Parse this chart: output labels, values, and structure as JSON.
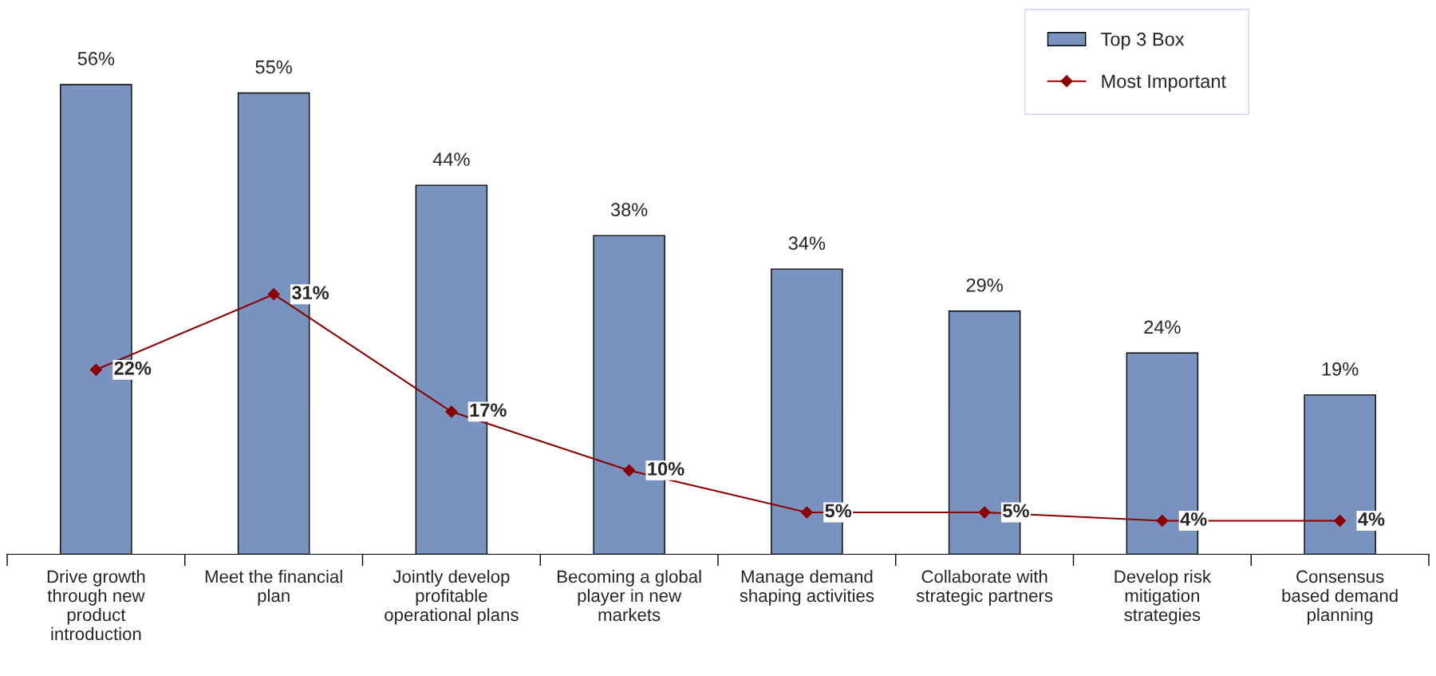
{
  "chart_data": {
    "type": "bar",
    "categories": [
      "Drive growth\nthrough new\nproduct\nintroduction",
      "Meet the financial\nplan",
      "Jointly develop\nprofitable\noperational plans",
      "Becoming a global\nplayer in new\nmarkets",
      "Manage demand\nshaping activities",
      "Collaborate with\nstrategic partners",
      "Develop risk\nmitigation\nstrategies",
      "Consensus\nbased demand\nplanning"
    ],
    "series": [
      {
        "name": "Top 3 Box",
        "color": "#7893bf",
        "values": [
          56,
          55,
          44,
          38,
          34,
          29,
          24,
          19
        ],
        "value_labels": [
          "56%",
          "55%",
          "44%",
          "38%",
          "34%",
          "29%",
          "24%",
          "19%"
        ]
      },
      {
        "name": "Most Important",
        "type": "line",
        "color": "#8b0000",
        "marker": "diamond",
        "values": [
          22,
          31,
          17,
          10,
          5,
          5,
          4,
          4
        ],
        "value_labels": [
          "22%",
          "31%",
          "17%",
          "10%",
          "5%",
          "5%",
          "4%",
          "4%"
        ]
      }
    ],
    "legend": "top right",
    "grid": false
  }
}
